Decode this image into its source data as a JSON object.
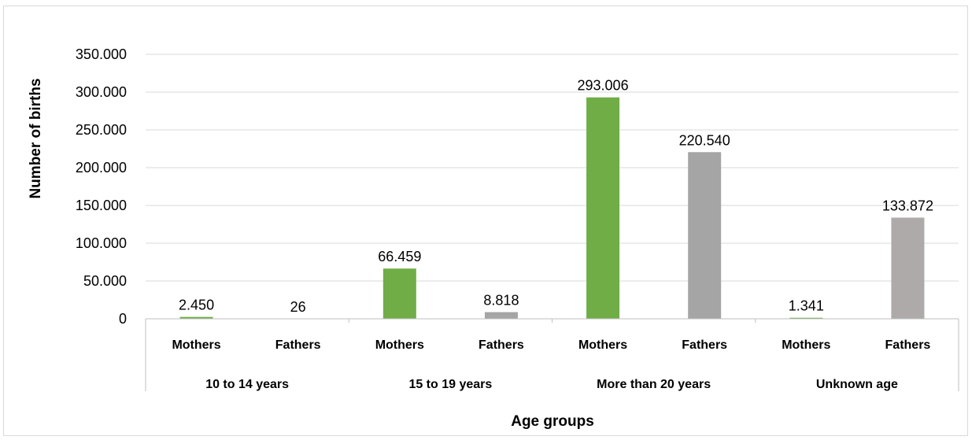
{
  "chart_data": {
    "type": "bar",
    "xlabel": "Age groups",
    "ylabel": "Number of births",
    "ylim": [
      0,
      350000
    ],
    "yticks": [
      0,
      50000,
      100000,
      150000,
      200000,
      250000,
      300000,
      350000
    ],
    "ytick_labels": [
      "0",
      "50.000",
      "100.000",
      "150.000",
      "200.000",
      "250.000",
      "300.000",
      "350.000"
    ],
    "grid": true,
    "legend": "none",
    "groups": [
      "10 to 14 years",
      "15 to 19 years",
      "More than 20 years",
      "Unknown age"
    ],
    "categories": [
      "Mothers",
      "Fathers",
      "Mothers",
      "Fathers",
      "Mothers",
      "Fathers",
      "Mothers",
      "Fathers"
    ],
    "values": [
      2450,
      26,
      66459,
      8818,
      293006,
      220540,
      1341,
      133872
    ],
    "value_labels": [
      "2.450",
      "26",
      "66.459",
      "8.818",
      "293.006",
      "220.540",
      "1.341",
      "133.872"
    ],
    "colors": {
      "mothers": "#70ad47",
      "fathers": "#a5a5a5",
      "fathers_unknown": "#aeaaaa",
      "gridline": "#d9d9d9",
      "axis": "#bfbfbf"
    }
  }
}
